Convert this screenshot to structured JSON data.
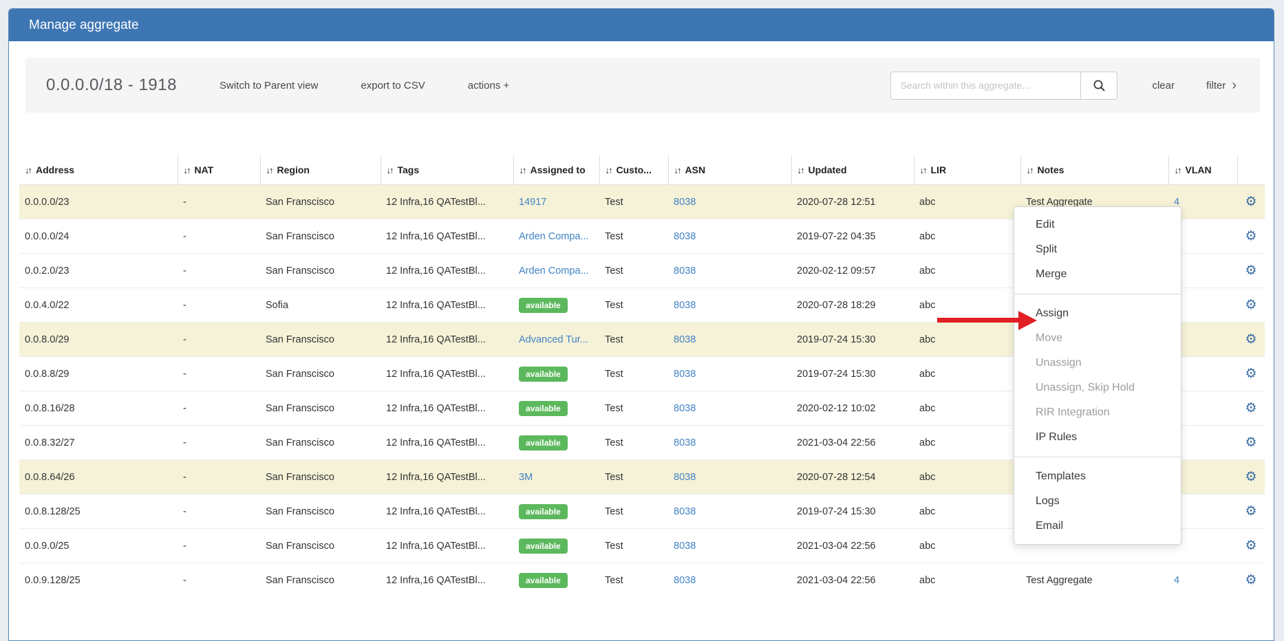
{
  "window": {
    "title": "Manage aggregate"
  },
  "toolbar": {
    "aggregate_label": "0.0.0.0/18 - 1918",
    "switch_view_label": "Switch to Parent view",
    "export_csv_label": "export to CSV",
    "actions_label": "actions +",
    "search_placeholder": "Search within this aggregate...",
    "clear_label": "clear",
    "filter_label": "filter"
  },
  "table": {
    "columns": [
      "Address",
      "NAT",
      "Region",
      "Tags",
      "Assigned to",
      "Custo...",
      "ASN",
      "Updated",
      "LIR",
      "Notes",
      "VLAN"
    ],
    "rows": [
      {
        "address": "0.0.0.0/23",
        "nat": "-",
        "region": "San Franscisco",
        "tags": "12 Infra,16 QATestBl...",
        "assigned": "14917",
        "assigned_type": "link",
        "customer": "Test",
        "asn": "8038",
        "updated": "2020-07-28 12:51",
        "lir": "abc",
        "notes": "Test Aggregate",
        "vlan": "4",
        "highlighted": true
      },
      {
        "address": "0.0.0.0/24",
        "nat": "-",
        "region": "San Franscisco",
        "tags": "12 Infra,16 QATestBl...",
        "assigned": "Arden Compa...",
        "assigned_type": "link",
        "customer": "Test",
        "asn": "8038",
        "updated": "2019-07-22 04:35",
        "lir": "abc",
        "notes": "",
        "vlan": "",
        "highlighted": false
      },
      {
        "address": "0.0.2.0/23",
        "nat": "-",
        "region": "San Franscisco",
        "tags": "12 Infra,16 QATestBl...",
        "assigned": "Arden Compa...",
        "assigned_type": "link",
        "customer": "Test",
        "asn": "8038",
        "updated": "2020-02-12 09:57",
        "lir": "abc",
        "notes": "",
        "vlan": "",
        "highlighted": false
      },
      {
        "address": "0.0.4.0/22",
        "nat": "-",
        "region": "Sofia",
        "tags": "12 Infra,16 QATestBl...",
        "assigned": "available",
        "assigned_type": "badge",
        "customer": "Test",
        "asn": "8038",
        "updated": "2020-07-28 18:29",
        "lir": "abc",
        "notes": "",
        "vlan": "",
        "highlighted": false
      },
      {
        "address": "0.0.8.0/29",
        "nat": "-",
        "region": "San Franscisco",
        "tags": "12 Infra,16 QATestBl...",
        "assigned": "Advanced Tur...",
        "assigned_type": "link",
        "customer": "Test",
        "asn": "8038",
        "updated": "2019-07-24 15:30",
        "lir": "abc",
        "notes": "",
        "vlan": "",
        "highlighted": true
      },
      {
        "address": "0.0.8.8/29",
        "nat": "-",
        "region": "San Franscisco",
        "tags": "12 Infra,16 QATestBl...",
        "assigned": "available",
        "assigned_type": "badge",
        "customer": "Test",
        "asn": "8038",
        "updated": "2019-07-24 15:30",
        "lir": "abc",
        "notes": "",
        "vlan": "",
        "highlighted": false
      },
      {
        "address": "0.0.8.16/28",
        "nat": "-",
        "region": "San Franscisco",
        "tags": "12 Infra,16 QATestBl...",
        "assigned": "available",
        "assigned_type": "badge",
        "customer": "Test",
        "asn": "8038",
        "updated": "2020-02-12 10:02",
        "lir": "abc",
        "notes": "",
        "vlan": "",
        "highlighted": false
      },
      {
        "address": "0.0.8.32/27",
        "nat": "-",
        "region": "San Franscisco",
        "tags": "12 Infra,16 QATestBl...",
        "assigned": "available",
        "assigned_type": "badge",
        "customer": "Test",
        "asn": "8038",
        "updated": "2021-03-04 22:56",
        "lir": "abc",
        "notes": "",
        "vlan": "",
        "highlighted": false
      },
      {
        "address": "0.0.8.64/26",
        "nat": "-",
        "region": "San Franscisco",
        "tags": "12 Infra,16 QATestBl...",
        "assigned": "3M",
        "assigned_type": "link",
        "customer": "Test",
        "asn": "8038",
        "updated": "2020-07-28 12:54",
        "lir": "abc",
        "notes": "",
        "vlan": "",
        "highlighted": true
      },
      {
        "address": "0.0.8.128/25",
        "nat": "-",
        "region": "San Franscisco",
        "tags": "12 Infra,16 QATestBl...",
        "assigned": "available",
        "assigned_type": "badge",
        "customer": "Test",
        "asn": "8038",
        "updated": "2019-07-24 15:30",
        "lir": "abc",
        "notes": "",
        "vlan": "",
        "highlighted": false
      },
      {
        "address": "0.0.9.0/25",
        "nat": "-",
        "region": "San Franscisco",
        "tags": "12 Infra,16 QATestBl...",
        "assigned": "available",
        "assigned_type": "badge",
        "customer": "Test",
        "asn": "8038",
        "updated": "2021-03-04 22:56",
        "lir": "abc",
        "notes": "",
        "vlan": "",
        "highlighted": false
      },
      {
        "address": "0.0.9.128/25",
        "nat": "-",
        "region": "San Franscisco",
        "tags": "12 Infra,16 QATestBl...",
        "assigned": "available",
        "assigned_type": "badge",
        "customer": "Test",
        "asn": "8038",
        "updated": "2021-03-04 22:56",
        "lir": "abc",
        "notes": "Test Aggregate",
        "vlan": "4",
        "highlighted": false
      }
    ]
  },
  "context_menu": {
    "items": [
      {
        "label": "Edit",
        "enabled": true
      },
      {
        "label": "Split",
        "enabled": true
      },
      {
        "label": "Merge",
        "enabled": true
      },
      {
        "type": "separator"
      },
      {
        "label": "Assign",
        "enabled": true,
        "pointed": true
      },
      {
        "label": "Move",
        "enabled": false
      },
      {
        "label": "Unassign",
        "enabled": false
      },
      {
        "label": "Unassign, Skip Hold",
        "enabled": false
      },
      {
        "label": "RIR Integration",
        "enabled": false
      },
      {
        "label": "IP Rules",
        "enabled": true
      },
      {
        "type": "separator"
      },
      {
        "label": "Templates",
        "enabled": true
      },
      {
        "label": "Logs",
        "enabled": true
      },
      {
        "label": "Email",
        "enabled": true
      }
    ]
  },
  "colors": {
    "header_bg": "#3d76b3",
    "link_blue": "#4183c4",
    "badge_green": "#5cb85c",
    "row_highlight": "#f5f2d8",
    "arrow_red": "#e02025",
    "gear_blue": "#3b6ea5"
  }
}
